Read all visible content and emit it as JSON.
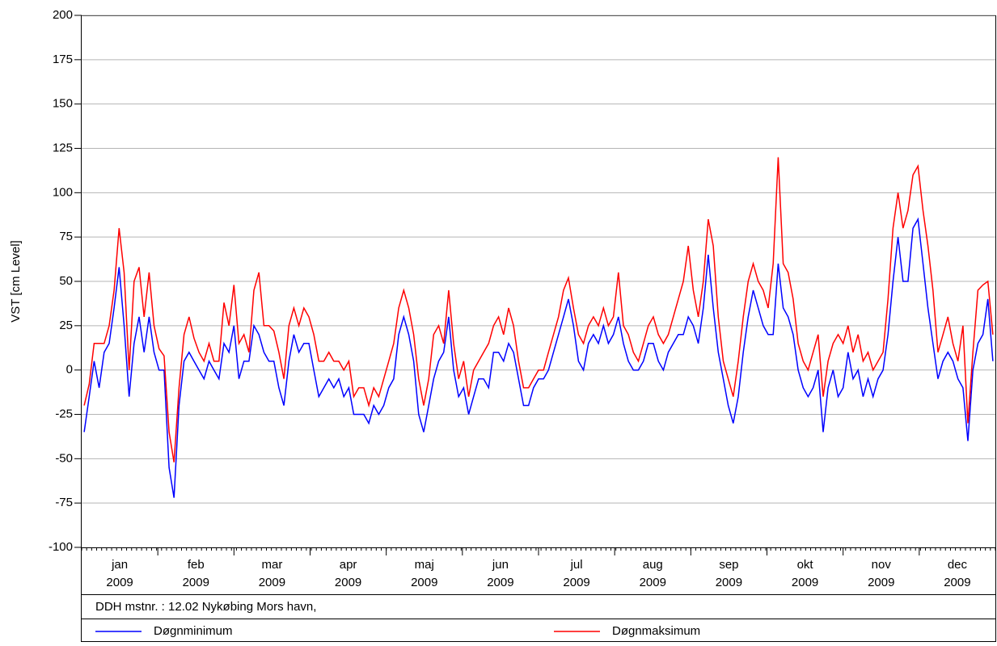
{
  "chart_data": {
    "type": "line",
    "y_label": "VST [cm Level]",
    "ylim": [
      -100,
      200
    ],
    "yticks": [
      -100,
      -75,
      -50,
      -25,
      0,
      25,
      50,
      75,
      100,
      125,
      150,
      175,
      200
    ],
    "grid": true,
    "months": [
      {
        "name": "jan",
        "year": "2009"
      },
      {
        "name": "feb",
        "year": "2009"
      },
      {
        "name": "mar",
        "year": "2009"
      },
      {
        "name": "apr",
        "year": "2009"
      },
      {
        "name": "maj",
        "year": "2009"
      },
      {
        "name": "jun",
        "year": "2009"
      },
      {
        "name": "jul",
        "year": "2009"
      },
      {
        "name": "aug",
        "year": "2009"
      },
      {
        "name": "sep",
        "year": "2009"
      },
      {
        "name": "okt",
        "year": "2009"
      },
      {
        "name": "nov",
        "year": "2009"
      },
      {
        "name": "dec",
        "year": "2009"
      }
    ],
    "station": "DDH mstnr. : 12.02 Nykøbing Mors havn,",
    "series": [
      {
        "name": "Døgnminimum",
        "color": "#0000ff",
        "values": [
          -35,
          -15,
          5,
          -10,
          10,
          15,
          35,
          58,
          25,
          -15,
          15,
          30,
          10,
          30,
          10,
          0,
          0,
          -55,
          -72,
          -20,
          5,
          10,
          5,
          0,
          -5,
          5,
          0,
          -5,
          15,
          10,
          25,
          -5,
          5,
          5,
          25,
          20,
          10,
          5,
          5,
          -10,
          -20,
          5,
          20,
          10,
          15,
          15,
          0,
          -15,
          -10,
          -5,
          -10,
          -5,
          -15,
          -10,
          -25,
          -25,
          -25,
          -30,
          -20,
          -25,
          -20,
          -10,
          -5,
          20,
          30,
          20,
          5,
          -25,
          -35,
          -20,
          -5,
          5,
          10,
          30,
          0,
          -15,
          -10,
          -25,
          -15,
          -5,
          -5,
          -10,
          10,
          10,
          5,
          15,
          10,
          -5,
          -20,
          -20,
          -10,
          -5,
          -5,
          0,
          10,
          20,
          30,
          40,
          25,
          5,
          0,
          15,
          20,
          15,
          25,
          15,
          20,
          30,
          15,
          5,
          0,
          0,
          5,
          15,
          15,
          5,
          0,
          10,
          15,
          20,
          20,
          30,
          25,
          15,
          35,
          65,
          35,
          10,
          -5,
          -20,
          -30,
          -15,
          10,
          30,
          45,
          35,
          25,
          20,
          20,
          60,
          35,
          30,
          20,
          0,
          -10,
          -15,
          -10,
          0,
          -35,
          -10,
          0,
          -15,
          -10,
          10,
          -5,
          0,
          -15,
          -5,
          -15,
          -5,
          0,
          20,
          50,
          75,
          50,
          50,
          80,
          85,
          60,
          35,
          15,
          -5,
          5,
          10,
          5,
          -5,
          -10,
          -40,
          0,
          15,
          20,
          40,
          5
        ]
      },
      {
        "name": "Døgnmaksimum",
        "color": "#ff0000",
        "values": [
          -20,
          -8,
          15,
          15,
          15,
          25,
          45,
          80,
          55,
          0,
          50,
          58,
          30,
          55,
          25,
          12,
          8,
          -35,
          -52,
          -10,
          20,
          30,
          18,
          10,
          5,
          15,
          5,
          5,
          38,
          25,
          48,
          15,
          20,
          10,
          45,
          55,
          25,
          25,
          22,
          10,
          -5,
          25,
          35,
          25,
          35,
          30,
          20,
          5,
          5,
          10,
          5,
          5,
          0,
          5,
          -15,
          -10,
          -10,
          -20,
          -10,
          -15,
          -5,
          5,
          15,
          35,
          45,
          35,
          20,
          -5,
          -20,
          -5,
          20,
          25,
          15,
          45,
          15,
          -5,
          5,
          -15,
          0,
          5,
          10,
          15,
          25,
          30,
          20,
          35,
          25,
          5,
          -10,
          -10,
          -5,
          0,
          0,
          10,
          20,
          30,
          45,
          52,
          35,
          20,
          15,
          25,
          30,
          25,
          35,
          25,
          30,
          55,
          25,
          20,
          10,
          5,
          15,
          25,
          30,
          20,
          15,
          20,
          30,
          40,
          50,
          70,
          45,
          30,
          50,
          85,
          70,
          30,
          5,
          -5,
          -15,
          5,
          30,
          50,
          60,
          50,
          45,
          35,
          60,
          120,
          60,
          55,
          40,
          15,
          5,
          0,
          10,
          20,
          -15,
          5,
          15,
          20,
          15,
          25,
          10,
          20,
          5,
          10,
          0,
          5,
          10,
          40,
          80,
          100,
          80,
          90,
          110,
          115,
          90,
          70,
          45,
          10,
          20,
          30,
          15,
          5,
          25,
          -30,
          10,
          45,
          48,
          50,
          20
        ]
      }
    ]
  }
}
